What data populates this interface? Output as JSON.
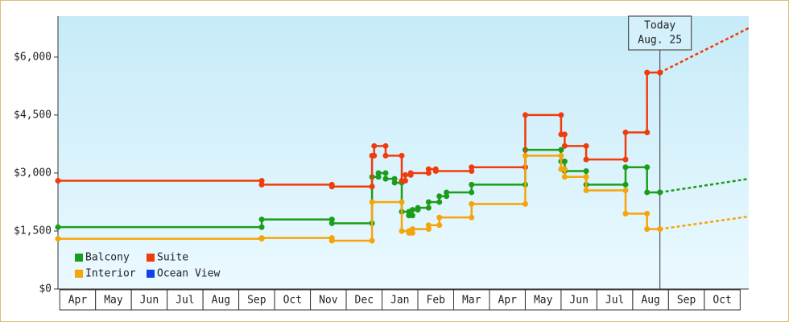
{
  "chart_data": {
    "type": "line",
    "step": true,
    "xlim": [
      -0.05,
      19.24
    ],
    "xticks": [
      {
        "value": 0.5,
        "label": "Apr"
      },
      {
        "value": 1.5,
        "label": "May"
      },
      {
        "value": 2.5,
        "label": "Jun"
      },
      {
        "value": 3.5,
        "label": "Jul"
      },
      {
        "value": 4.5,
        "label": "Aug"
      },
      {
        "value": 5.5,
        "label": "Sep"
      },
      {
        "value": 6.5,
        "label": "Oct"
      },
      {
        "value": 7.5,
        "label": "Nov"
      },
      {
        "value": 8.5,
        "label": "Dec"
      },
      {
        "value": 9.5,
        "label": "Jan"
      },
      {
        "value": 10.5,
        "label": "Feb"
      },
      {
        "value": 11.5,
        "label": "Mar"
      },
      {
        "value": 12.5,
        "label": "Apr"
      },
      {
        "value": 13.5,
        "label": "May"
      },
      {
        "value": 14.5,
        "label": "Jun"
      },
      {
        "value": 15.5,
        "label": "Jul"
      },
      {
        "value": 16.5,
        "label": "Aug"
      },
      {
        "value": 17.5,
        "label": "Sep"
      },
      {
        "value": 18.5,
        "label": "Oct"
      }
    ],
    "ylim": [
      0,
      7060
    ],
    "yticks": [
      {
        "value": 0,
        "label": "$0"
      },
      {
        "value": 1500,
        "label": "$1,500"
      },
      {
        "value": 3000,
        "label": "$3,000"
      },
      {
        "value": 4500,
        "label": "$4,500"
      },
      {
        "value": 6000,
        "label": "$6,000"
      }
    ],
    "legend": "lower left",
    "annotations": [
      {
        "x": 16.76,
        "lines": [
          "Today",
          "Aug. 25"
        ]
      }
    ],
    "series": [
      {
        "name": "Balcony",
        "color": "#1a9e1a",
        "x": [
          -0.05,
          5.64,
          7.6,
          8.72,
          8.9,
          9.1,
          9.35,
          9.55,
          9.75,
          9.85,
          10.0,
          10.3,
          10.6,
          10.8,
          11.5,
          13.0,
          14.0,
          14.1,
          14.7,
          15.8,
          16.4,
          16.76
        ],
        "values": [
          1600,
          1800,
          1700,
          2900,
          3000,
          2850,
          2750,
          2000,
          1900,
          2050,
          2100,
          2250,
          2400,
          2500,
          2700,
          3600,
          3300,
          3050,
          2700,
          3150,
          2500,
          2500
        ],
        "forecast_x": [
          16.76,
          19.24
        ],
        "forecast_values": [
          2500,
          2850
        ]
      },
      {
        "name": "Suite",
        "color": "#f03c0c",
        "x": [
          -0.05,
          5.64,
          7.6,
          8.72,
          8.78,
          9.1,
          9.55,
          9.65,
          9.8,
          10.3,
          10.5,
          11.5,
          13.0,
          14.0,
          14.1,
          14.7,
          15.8,
          16.4,
          16.76
        ],
        "values": [
          2800,
          2700,
          2650,
          3450,
          3700,
          3450,
          2800,
          2950,
          3000,
          3100,
          3050,
          3150,
          4500,
          4000,
          3700,
          3350,
          4050,
          5600,
          5600
        ],
        "forecast_x": [
          16.76,
          19.24
        ],
        "forecast_values": [
          5600,
          6750
        ]
      },
      {
        "name": "Interior",
        "color": "#f5a50a",
        "x": [
          -0.05,
          5.64,
          7.6,
          8.72,
          9.55,
          9.75,
          9.85,
          10.3,
          10.6,
          11.5,
          13.0,
          14.0,
          14.1,
          14.7,
          15.8,
          16.4,
          16.76
        ],
        "values": [
          1300,
          1320,
          1250,
          2250,
          1500,
          1450,
          1550,
          1650,
          1850,
          2200,
          3450,
          3100,
          2900,
          2550,
          1950,
          1550,
          1550
        ],
        "forecast_x": [
          16.76,
          19.24
        ],
        "forecast_values": [
          1550,
          1875
        ]
      },
      {
        "name": "Ocean View",
        "color": "#1040f0",
        "x": [],
        "values": []
      }
    ]
  }
}
